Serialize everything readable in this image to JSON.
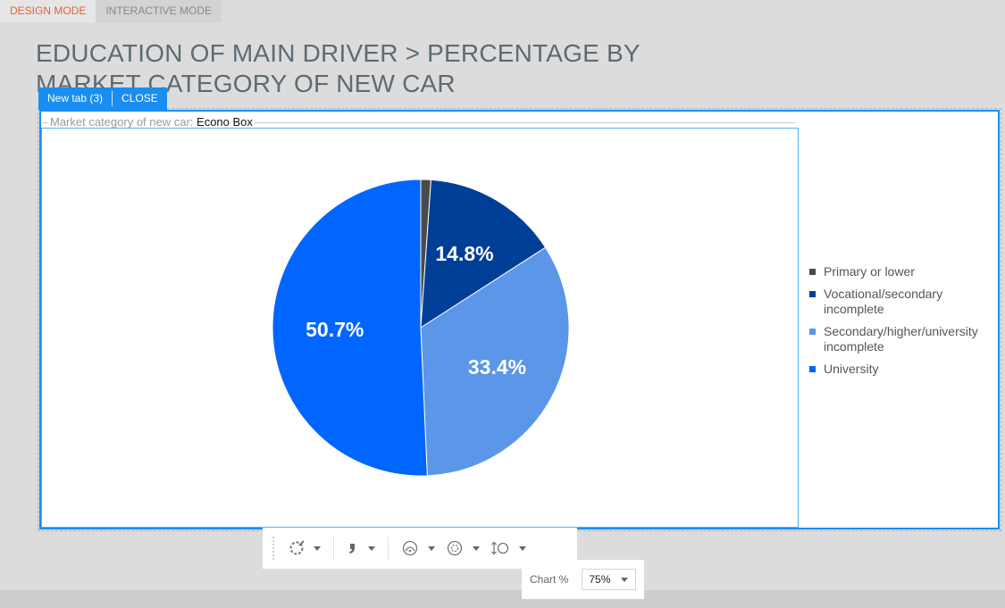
{
  "mode_tabs": {
    "design": "DESIGN MODE",
    "interactive": "INTERACTIVE MODE"
  },
  "page": {
    "title": "EDUCATION OF MAIN DRIVER > PERCENTAGE BY MARKET CATEGORY OF NEW CAR"
  },
  "tabbar": {
    "tab_label": "New tab (3)",
    "close_label": "CLOSE"
  },
  "filter": {
    "label": "Market category of new car:",
    "value": "Econo Box"
  },
  "toolbar": {
    "chart_pct_label": "Chart %",
    "chart_pct_value": "75%",
    "icons": [
      "chart-type-icon",
      "quote-format-icon",
      "gauge-icon",
      "target-icon",
      "height-adjust-icon"
    ]
  },
  "chart_data": {
    "type": "pie",
    "categories": [
      "Primary or lower",
      "Vocational/secondary incomplete",
      "Secondary/higher/university incomplete",
      "University"
    ],
    "values": [
      1.1,
      14.8,
      33.4,
      50.7
    ],
    "data_labels": [
      "",
      "14.8%",
      "33.4%",
      "50.7%"
    ],
    "colors": [
      "#4a4a4a",
      "#003f97",
      "#5b96e8",
      "#0066ff"
    ],
    "legend_position": "right"
  }
}
